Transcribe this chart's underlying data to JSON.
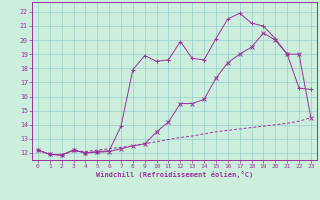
{
  "xlabel": "Windchill (Refroidissement éolien,°C)",
  "bg_color": "#cceedd",
  "grid_color": "#99cccc",
  "line_color": "#993399",
  "xlim": [
    -0.5,
    23.5
  ],
  "ylim": [
    11.5,
    22.7
  ],
  "xticks": [
    0,
    1,
    2,
    3,
    4,
    5,
    6,
    7,
    8,
    9,
    10,
    11,
    12,
    13,
    14,
    15,
    16,
    17,
    18,
    19,
    20,
    21,
    22,
    23
  ],
  "yticks": [
    12,
    13,
    14,
    15,
    16,
    17,
    18,
    19,
    20,
    21,
    22
  ],
  "line1_x": [
    0,
    1,
    2,
    3,
    4,
    5,
    6,
    7,
    8,
    9,
    10,
    11,
    12,
    13,
    14,
    15,
    16,
    17,
    18,
    19,
    20,
    21,
    22,
    23
  ],
  "line1_y": [
    12.2,
    11.9,
    11.85,
    12.2,
    12.0,
    12.1,
    12.15,
    13.9,
    17.9,
    18.9,
    18.5,
    18.6,
    19.9,
    18.7,
    18.6,
    20.1,
    21.5,
    21.9,
    21.2,
    21.0,
    20.1,
    19.0,
    16.6,
    16.5
  ],
  "line2_x": [
    0,
    1,
    2,
    3,
    4,
    5,
    6,
    7,
    8,
    9,
    10,
    11,
    12,
    13,
    14,
    15,
    16,
    17,
    18,
    19,
    20,
    21,
    22,
    23
  ],
  "line2_y": [
    12.2,
    11.9,
    11.85,
    12.2,
    12.0,
    12.05,
    12.1,
    12.3,
    12.5,
    12.65,
    13.5,
    14.2,
    15.5,
    15.5,
    15.8,
    17.3,
    18.4,
    19.0,
    19.5,
    20.5,
    20.0,
    19.0,
    19.0,
    14.5
  ],
  "line3_x": [
    0,
    1,
    2,
    3,
    4,
    5,
    6,
    7,
    8,
    9,
    10,
    11,
    12,
    13,
    14,
    15,
    16,
    17,
    18,
    19,
    20,
    21,
    22,
    23
  ],
  "line3_y": [
    12.2,
    11.9,
    11.85,
    12.15,
    12.1,
    12.2,
    12.3,
    12.4,
    12.5,
    12.65,
    12.8,
    12.95,
    13.1,
    13.2,
    13.35,
    13.5,
    13.6,
    13.7,
    13.8,
    13.9,
    14.0,
    14.1,
    14.25,
    14.5
  ],
  "marker1": "+",
  "marker2": "x",
  "lw": 0.7,
  "ms": 2.5
}
